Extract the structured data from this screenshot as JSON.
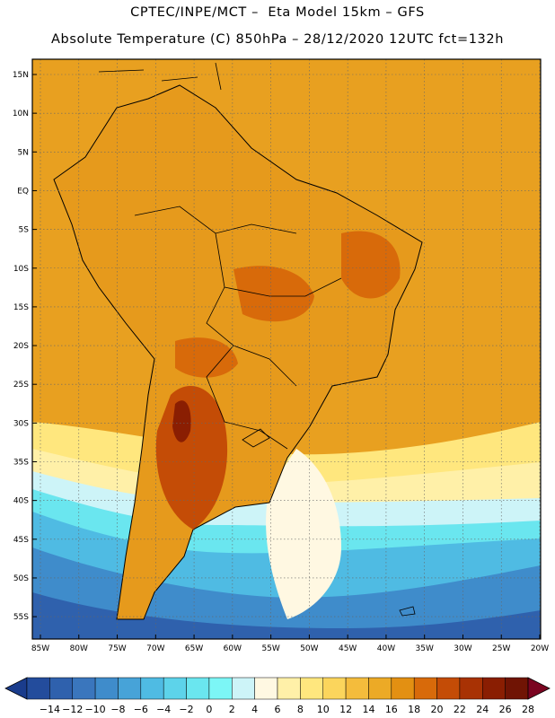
{
  "header": {
    "line1": "CPTEC/INPE/MCT –  Eta Model 15km – GFS",
    "line2": "Absolute Temperature (C) 850hPa – 28/12/2020 12UTC fct=132h"
  },
  "map": {
    "lat_labels": [
      "15N",
      "10N",
      "5N",
      "EQ",
      "5S",
      "10S",
      "15S",
      "20S",
      "25S",
      "30S",
      "35S",
      "40S",
      "45S",
      "50S",
      "55S"
    ],
    "lon_labels": [
      "85W",
      "80W",
      "75W",
      "70W",
      "65W",
      "60W",
      "55W",
      "50W",
      "45W",
      "40W",
      "35W",
      "30W",
      "25W",
      "20W"
    ],
    "background_color": "#e8a020",
    "land_color": "#e69a1c",
    "border_color": "#000000"
  },
  "colorbar": {
    "tick_labels": [
      "-14",
      "-12",
      "-10",
      "-8",
      "-6",
      "-4",
      "-2",
      "0",
      "2",
      "4",
      "6",
      "8",
      "10",
      "12",
      "14",
      "16",
      "18",
      "20",
      "22",
      "24",
      "26",
      "28"
    ],
    "colors": [
      "#1a3c8c",
      "#234c9c",
      "#2f61ad",
      "#3a76bd",
      "#3f8ccb",
      "#47a3d8",
      "#4fbbe3",
      "#5dd3ea",
      "#6ae6ef",
      "#7cf6f6",
      "#cdf4f8",
      "#fff8e2",
      "#fff0a8",
      "#ffe77e",
      "#fbd55c",
      "#f4bc3c",
      "#ecaa26",
      "#e39012",
      "#d86a0a",
      "#c44c06",
      "#a83204",
      "#8a1e02",
      "#701404",
      "#7a0420"
    ]
  }
}
